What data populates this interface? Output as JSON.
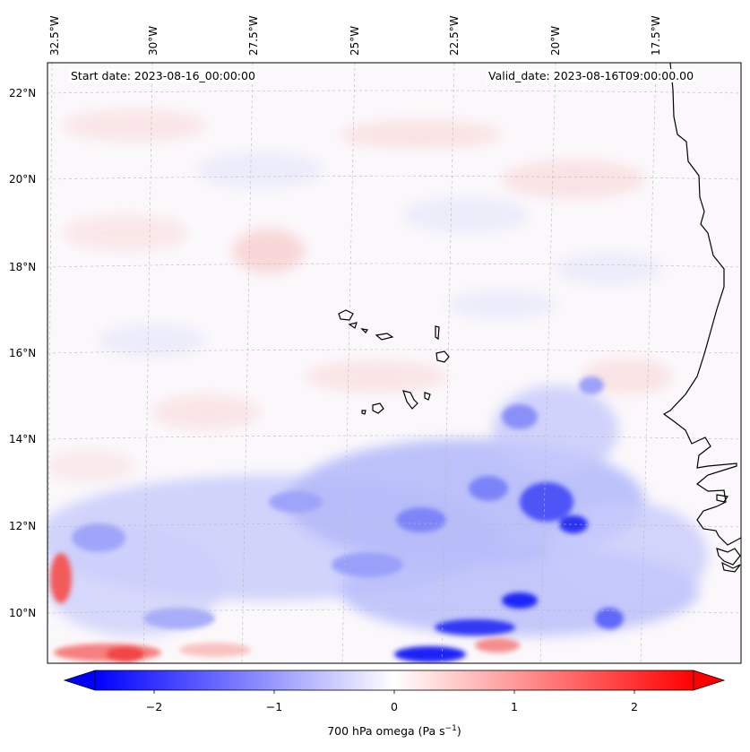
{
  "map": {
    "start_date_label": "Start date: 2023-08-16_00:00:00",
    "valid_date_label": "Valid_date: 2023-08-16T09:00:00.00",
    "longitude_labels": [
      "32.5°W",
      "30°W",
      "27.5°W",
      "25°W",
      "22.5°W",
      "20°W",
      "17.5°W"
    ],
    "latitude_labels": [
      "22°N",
      "20°N",
      "18°N",
      "16°N",
      "14°N",
      "12°N",
      "10°N"
    ],
    "field_colors": {
      "negative": "#0000ff",
      "zero": "#ffffff",
      "positive": "#ff0000",
      "coastline": "#000000"
    }
  },
  "colorbar": {
    "title": "700 hPa omega (Pa s",
    "title_superscript": "−1",
    "title_suffix": ")",
    "tick_labels": [
      "−2",
      "−1",
      "0",
      "1",
      "2"
    ],
    "range": [
      -2.6,
      2.6
    ],
    "extend": "both"
  }
}
